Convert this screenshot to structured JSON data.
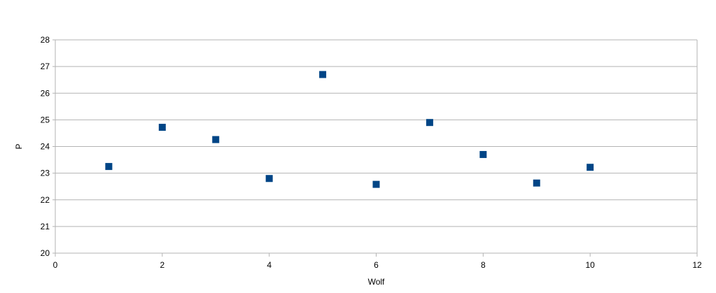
{
  "chart_data": {
    "type": "scatter",
    "xlabel": "Wolf",
    "ylabel": "P",
    "xlim": [
      0,
      12
    ],
    "ylim": [
      20,
      28
    ],
    "xticks": [
      0,
      2,
      4,
      6,
      8,
      10,
      12
    ],
    "yticks": [
      20,
      21,
      22,
      23,
      24,
      25,
      26,
      27,
      28
    ],
    "grid": "horizontal",
    "legend": "none",
    "series": [
      {
        "color": "#004586",
        "marker": "square",
        "points": [
          {
            "x": 1,
            "y": 23.25
          },
          {
            "x": 2,
            "y": 24.72
          },
          {
            "x": 3,
            "y": 24.26
          },
          {
            "x": 4,
            "y": 22.8
          },
          {
            "x": 5,
            "y": 26.7
          },
          {
            "x": 6,
            "y": 22.58
          },
          {
            "x": 7,
            "y": 24.9
          },
          {
            "x": 8,
            "y": 23.7
          },
          {
            "x": 9,
            "y": 22.63
          },
          {
            "x": 10,
            "y": 23.22
          }
        ]
      }
    ]
  }
}
